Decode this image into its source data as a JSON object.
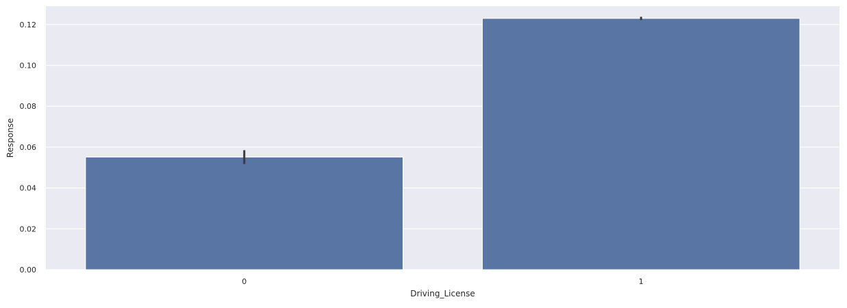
{
  "chart_data": {
    "type": "bar",
    "categories": [
      "0",
      "1"
    ],
    "values": [
      0.0551,
      0.123
    ],
    "error_bars": [
      [
        0.0517,
        0.0585
      ],
      [
        0.1222,
        0.1238
      ]
    ],
    "xlabel": "Driving_License",
    "ylabel": "Response",
    "ylim": [
      0,
      0.129
    ],
    "yticks": [
      "0.00",
      "0.02",
      "0.04",
      "0.06",
      "0.08",
      "0.10",
      "0.12"
    ],
    "ytick_values": [
      0,
      0.02,
      0.04,
      0.06,
      0.08,
      0.1,
      0.12
    ],
    "grid": true,
    "legend": "none",
    "colors": {
      "bar": "#5975a4",
      "background": "#eaeaf2",
      "grid": "#ffffff",
      "error_bar": "#3b3b3b"
    }
  }
}
